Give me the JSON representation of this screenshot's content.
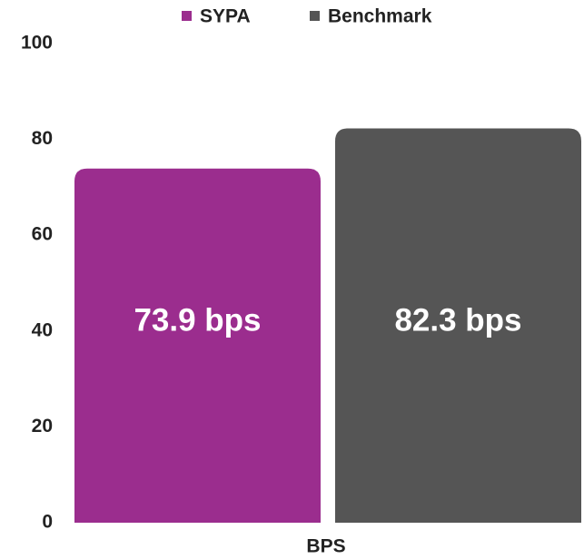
{
  "chart_data": {
    "type": "bar",
    "categories": [
      "BPS"
    ],
    "series": [
      {
        "name": "SYPA",
        "color": "#9b2d8e",
        "values": [
          73.9
        ],
        "value_labels": [
          "73.9 bps"
        ]
      },
      {
        "name": "Benchmark",
        "color": "#555555",
        "values": [
          82.3
        ],
        "value_labels": [
          "82.3 bps"
        ]
      }
    ],
    "ylim": [
      0,
      100
    ],
    "yticks": [
      0,
      20,
      40,
      60,
      80,
      100
    ],
    "grid": false,
    "legend": "top"
  }
}
